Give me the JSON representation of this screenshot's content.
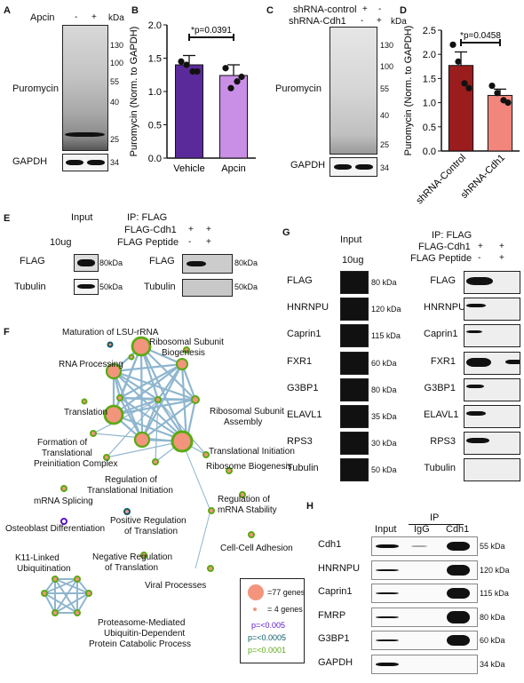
{
  "panel_letters": {
    "A": "A",
    "B": "B",
    "C": "C",
    "D": "D",
    "E": "E",
    "F": "F",
    "G": "G",
    "H": "H"
  },
  "panelA": {
    "apcin_label": "Apcin",
    "minus": "-",
    "plus": "+",
    "kda": "kDa",
    "puromycin": "Puromycin",
    "gapdh": "GAPDH",
    "markers": [
      "130",
      "100",
      "55",
      "40",
      "25"
    ],
    "gapdh_marker": "34"
  },
  "panelC": {
    "shctrl_label": "shRNA-control",
    "shcdh1_label": "shRNA-Cdh1",
    "plus": "+",
    "minus": "-",
    "kda": "kDa",
    "puromycin": "Puromycin",
    "gapdh": "GAPDH",
    "markers": [
      "130",
      "100",
      "55",
      "40",
      "25"
    ],
    "gapdh_marker": "34"
  },
  "chart_data": [
    {
      "type": "bar",
      "ylabel": "Puromycin (Norm. to GAPDH)",
      "ylim": [
        0,
        2.0
      ],
      "yticks": [
        "0.0",
        "0.5",
        "1.0",
        "1.5",
        "2.0"
      ],
      "categories": [
        "Vehicle",
        "Apcin"
      ],
      "values": [
        1.4,
        1.24
      ],
      "errors": [
        0.14,
        0.16
      ],
      "points": [
        [
          1.45,
          1.3,
          1.4,
          1.3
        ],
        [
          1.35,
          1.22,
          1.05,
          1.15
        ]
      ],
      "colors": [
        "#5b2a9a",
        "#c98ee6"
      ],
      "annotation": "*p=0.0391"
    },
    {
      "type": "bar",
      "ylabel": "Puromycin (Norm. to GAPDH)",
      "ylim": [
        0,
        2.5
      ],
      "yticks": [
        "0.0",
        "0.5",
        "1.0",
        "1.5",
        "2.0",
        "2.5"
      ],
      "categories": [
        "shRNA-Control",
        "shRNA-Cdh1"
      ],
      "values": [
        1.77,
        1.15
      ],
      "errors": [
        0.28,
        0.13
      ],
      "points": [
        [
          2.2,
          1.3,
          1.85,
          1.4
        ],
        [
          1.35,
          1.0,
          1.2,
          1.05
        ]
      ],
      "colors": [
        "#9b1c1c",
        "#f2857c"
      ],
      "annotation": "*p=0.0458"
    }
  ],
  "panelE": {
    "input": "Input",
    "ip": "IP: FLAG",
    "flag_cdh1": "FLAG-Cdh1",
    "flag_peptide": "FLAG Peptide",
    "ug": "10ug",
    "plus": "+",
    "minus": "-",
    "rows": [
      {
        "name": "FLAG",
        "mw": "80kDa"
      },
      {
        "name": "Tubulin",
        "mw": "50kDa"
      }
    ]
  },
  "panelG": {
    "input": "Input",
    "ug": "10ug",
    "ip": "IP: FLAG",
    "flag_cdh1": "FLAG-Cdh1",
    "flag_peptide": "FLAG Peptide",
    "plus": "+",
    "minus": "-",
    "rows": [
      {
        "name": "FLAG",
        "mw": "80 kDa"
      },
      {
        "name": "HNRNPU",
        "mw": "120 kDa"
      },
      {
        "name": "Caprin1",
        "mw": "115 kDa"
      },
      {
        "name": "FXR1",
        "mw": "60 kDa"
      },
      {
        "name": "G3BP1",
        "mw": "80 kDa"
      },
      {
        "name": "ELAVL1",
        "mw": "35 kDa"
      },
      {
        "name": "RPS3",
        "mw": "30 kDa"
      },
      {
        "name": "Tubulin",
        "mw": "50 kDa"
      }
    ]
  },
  "panelF": {
    "terms": {
      "lsu": "Maturation of LSU-rRNA",
      "rsb1": "Ribosomal Subunit",
      "rsb2": "Biogenesis",
      "rna": "RNA Processing",
      "trans": "Translation",
      "rsa1": "Ribosomal Subunit",
      "rsa2": "Assembly",
      "ftp1": "Formation of",
      "ftp2": "Translational",
      "ftp3": "Preinitiation Complex",
      "ti": "Translational Initiation",
      "rib": "Ribosome Biogenesis",
      "rti1": "Regulation of",
      "rti2": "Translational Initiation",
      "mrs1": "Regulation of",
      "mrs2": "mRNA Stability",
      "splice": "mRNA Splicing",
      "prt1": "Positive Regulation",
      "prt2": "of Translation",
      "osteo": "Osteoblast Differentiation",
      "k11a": "K11-Linked",
      "k11b": "Ubiquitination",
      "cca": "Cell-Cell Adhesion",
      "nrt1": "Negative Regulation",
      "nrt2": "of Translation",
      "viral": "Viral Processes",
      "pm1": "Proteasome-Mediated",
      "pm2": "Ubiquitin-Dependent",
      "pm3": "Protein Catabolic Process"
    },
    "legend": {
      "big": "=77 genes",
      "small": "= 4 genes",
      "p1": "p=<0.005",
      "p2": "p=<0.0005",
      "p3": "p=<0.0001",
      "c1": "#5a14c8",
      "c2": "#0b5a6a",
      "c3": "#5aaa14"
    }
  },
  "panelH": {
    "ip": "IP",
    "input": "Input",
    "igg": "IgG",
    "cdh1": "Cdh1",
    "rows": [
      {
        "name": "Cdh1",
        "mw": "55 kDa"
      },
      {
        "name": "HNRNPU",
        "mw": "120 kDa"
      },
      {
        "name": "Caprin1",
        "mw": "115 kDa"
      },
      {
        "name": "FMRP",
        "mw": "80 kDa"
      },
      {
        "name": "G3BP1",
        "mw": "60 kDa"
      },
      {
        "name": "GAPDH",
        "mw": "34 kDa"
      }
    ]
  }
}
